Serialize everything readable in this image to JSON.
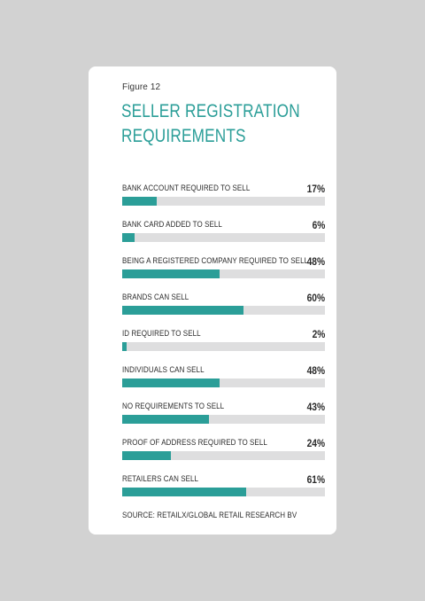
{
  "figure_label": "Figure 12",
  "title_line1": "SELLER REGISTRATION",
  "title_line2": "REQUIREMENTS",
  "source": "SOURCE: RETAILX/GLOBAL RETAIL RESEARCH BV",
  "colors": {
    "accent": "#2b9e98",
    "track": "#dededf",
    "background": "#d2d2d2",
    "card": "#ffffff"
  },
  "chart_data": {
    "type": "bar",
    "orientation": "horizontal",
    "title": "SELLER REGISTRATION REQUIREMENTS",
    "xlim": [
      0,
      100
    ],
    "grid": false,
    "categories": [
      "BANK ACCOUNT REQUIRED TO SELL",
      "BANK CARD ADDED TO SELL",
      "BEING A REGISTERED COMPANY REQUIRED TO SELL",
      "BRANDS CAN SELL",
      "ID REQUIRED TO SELL",
      "INDIVIDUALS CAN SELL",
      "NO REQUIREMENTS TO SELL",
      "PROOF OF ADDRESS REQUIRED TO SELL",
      "RETAILERS CAN SELL"
    ],
    "values": [
      17,
      6,
      48,
      60,
      2,
      48,
      43,
      24,
      61
    ],
    "value_labels": [
      "17%",
      "6%",
      "48%",
      "60%",
      "2%",
      "48%",
      "43%",
      "24%",
      "61%"
    ]
  }
}
